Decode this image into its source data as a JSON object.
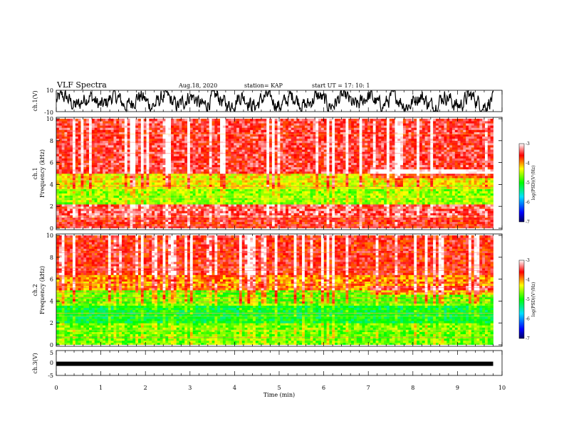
{
  "header": {
    "title": "VLF Spectra",
    "date": "Aug.18, 2020",
    "station": "station= KAP",
    "start": "start  UT  =   17: 10: 1"
  },
  "chart_data": [
    {
      "type": "line",
      "panel": "ch1-waveform",
      "ylabel": "ch.1(V)",
      "ylim": [
        -10,
        10
      ],
      "y_tick_labels": [
        "10",
        "-10"
      ],
      "xlim": [
        0,
        10
      ],
      "series_description_values": "noisy waveform spanning roughly -10 to 10 V over 0 to 9.8 min"
    },
    {
      "type": "heatmap",
      "panel": "ch1-spectrogram",
      "ylabel": "ch.1\nFrequency (kHz)",
      "ylabel_line1": "ch.1",
      "ylabel_line2": "Frequency (kHz)",
      "ylim": [
        0,
        10
      ],
      "y_ticks": [
        "0",
        "2",
        "4",
        "6",
        "8",
        "10"
      ],
      "xlim": [
        0,
        10
      ],
      "data_end_min": 9.8,
      "colorbar": {
        "label": "log(PSD)(V²/Hz)",
        "range": [
          -7,
          -3
        ],
        "ticks": [
          "-3",
          "-4",
          "-5",
          "-6",
          "-7"
        ]
      },
      "bands": [
        {
          "f": [
            0,
            1.0
          ],
          "level": -3.6
        },
        {
          "f": [
            1.0,
            2.2
          ],
          "level": -3.4
        },
        {
          "f": [
            2.2,
            3.6
          ],
          "level": -4.6
        },
        {
          "f": [
            3.6,
            5.0
          ],
          "level": -4.3
        },
        {
          "f": [
            5.0,
            10.0
          ],
          "level": -3.5
        }
      ]
    },
    {
      "type": "heatmap",
      "panel": "ch2-spectrogram",
      "ylabel_line1": "ch.2",
      "ylabel_line2": "Frequency (kHz)",
      "ylim": [
        0,
        10
      ],
      "y_ticks": [
        "0",
        "2",
        "4",
        "6",
        "8",
        "10"
      ],
      "xlim": [
        0,
        10
      ],
      "data_end_min": 9.8,
      "colorbar": {
        "label": "log(PSD)(V²/Hz)",
        "range": [
          -7,
          -3
        ],
        "ticks": [
          "-3",
          "-4",
          "-5",
          "-6",
          "-7"
        ]
      },
      "bands": [
        {
          "f": [
            0,
            2.0
          ],
          "level": -4.7
        },
        {
          "f": [
            2.0,
            3.6
          ],
          "level": -5.1
        },
        {
          "f": [
            3.6,
            5.0
          ],
          "level": -4.7
        },
        {
          "f": [
            5.0,
            6.5
          ],
          "level": -4.0
        },
        {
          "f": [
            6.5,
            10.0
          ],
          "level": -3.6
        }
      ]
    },
    {
      "type": "line",
      "panel": "ch3-waveform",
      "ylabel": "ch.3(V)",
      "ylim": [
        -5,
        5
      ],
      "y_ticks": [
        "5",
        "0",
        "-5"
      ],
      "xlim": [
        0,
        10
      ],
      "level_v": -0.3
    }
  ],
  "x_axis": {
    "label": "Time (min)",
    "ticks": [
      "0",
      "1",
      "2",
      "3",
      "4",
      "5",
      "6",
      "7",
      "8",
      "9",
      "10"
    ]
  },
  "colors": {
    "colormap": [
      "#000080",
      "#0000ff",
      "#00ffff",
      "#00ff00",
      "#ffff00",
      "#ff0000",
      "#ffffff"
    ]
  }
}
